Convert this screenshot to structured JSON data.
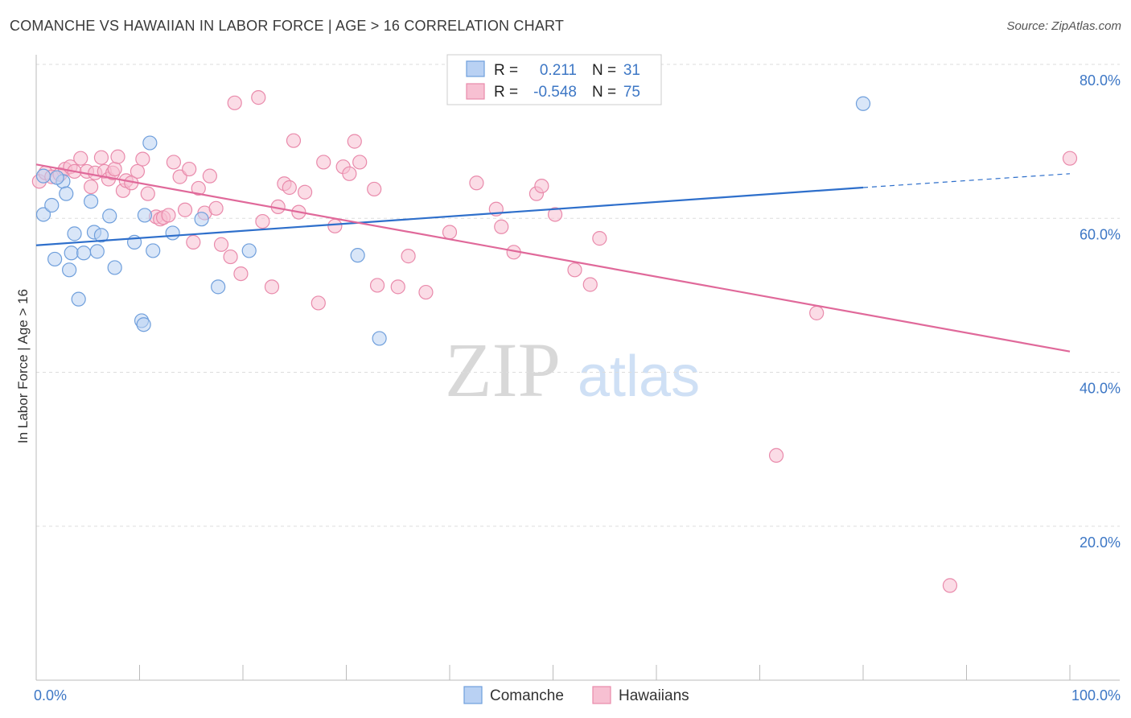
{
  "header": {
    "title": "COMANCHE VS HAWAIIAN IN LABOR FORCE | AGE > 16 CORRELATION CHART",
    "source": "Source: ZipAtlas.com"
  },
  "watermark": {
    "zip": "ZIP",
    "atlas": "atlas"
  },
  "colors": {
    "blue_fill": "#b9d1f3",
    "blue_stroke": "#6f9fdc",
    "blue_line": "#2e6fcb",
    "pink_fill": "#f7c0d2",
    "pink_stroke": "#e98aab",
    "pink_line": "#e0699a",
    "tick_text": "#3d77c5",
    "grid": "#dddddd"
  },
  "chart_data": {
    "type": "scatter",
    "xlabel": "",
    "ylabel": "In Labor Force | Age > 16",
    "xlim": [
      0,
      100
    ],
    "ylim": [
      0,
      80
    ],
    "y_ticks": [
      {
        "value": 20,
        "label": "20.0%"
      },
      {
        "value": 40,
        "label": "40.0%"
      },
      {
        "value": 60,
        "label": "60.0%"
      },
      {
        "value": 80,
        "label": "80.0%"
      }
    ],
    "x_tick_labels": [
      {
        "value": 0,
        "label": "0.0%"
      },
      {
        "value": 100,
        "label": "100.0%"
      }
    ],
    "grid": true,
    "legend_position": "top-center",
    "stats": [
      {
        "r_label": "R =",
        "r": "0.211",
        "n_label": "N =",
        "n": "31"
      },
      {
        "r_label": "R =",
        "r": "-0.548",
        "n_label": "N =",
        "n": "75"
      }
    ],
    "series": [
      {
        "name": "Comanche",
        "trend": {
          "x0": 0,
          "y0": 56.5,
          "x1": 80,
          "y1": 64.0,
          "dash_x1": 100,
          "dash_y1": 65.8
        },
        "points": [
          [
            0.7,
            65.5
          ],
          [
            0.7,
            60.5
          ],
          [
            1.5,
            61.7
          ],
          [
            1.8,
            54.7
          ],
          [
            2.6,
            64.8
          ],
          [
            2.9,
            63.2
          ],
          [
            3.2,
            53.3
          ],
          [
            3.4,
            55.5
          ],
          [
            3.7,
            58.0
          ],
          [
            4.1,
            49.5
          ],
          [
            4.6,
            55.5
          ],
          [
            5.3,
            62.2
          ],
          [
            5.6,
            58.2
          ],
          [
            5.9,
            55.7
          ],
          [
            6.3,
            57.8
          ],
          [
            7.1,
            60.3
          ],
          [
            7.6,
            53.6
          ],
          [
            9.5,
            56.9
          ],
          [
            10.2,
            46.7
          ],
          [
            10.4,
            46.2
          ],
          [
            10.5,
            60.4
          ],
          [
            11.0,
            69.8
          ],
          [
            11.3,
            55.8
          ],
          [
            13.2,
            58.1
          ],
          [
            16.0,
            59.9
          ],
          [
            17.6,
            51.1
          ],
          [
            20.6,
            55.8
          ],
          [
            31.1,
            55.2
          ],
          [
            33.2,
            44.4
          ],
          [
            80.0,
            74.9
          ],
          [
            2.0,
            65.3
          ]
        ]
      },
      {
        "name": "Hawaiians",
        "trend": {
          "x0": 0,
          "y0": 67.0,
          "x1": 100,
          "y1": 42.7
        },
        "points": [
          [
            0.3,
            64.8
          ],
          [
            0.9,
            65.9
          ],
          [
            1.5,
            65.4
          ],
          [
            2.3,
            65.7
          ],
          [
            2.8,
            66.4
          ],
          [
            3.3,
            66.7
          ],
          [
            3.7,
            66.1
          ],
          [
            4.3,
            67.8
          ],
          [
            4.9,
            66.1
          ],
          [
            5.3,
            64.1
          ],
          [
            5.7,
            65.9
          ],
          [
            6.3,
            67.9
          ],
          [
            6.6,
            66.1
          ],
          [
            7.0,
            65.1
          ],
          [
            7.4,
            65.9
          ],
          [
            7.6,
            66.4
          ],
          [
            7.9,
            68.0
          ],
          [
            8.4,
            63.6
          ],
          [
            8.7,
            64.9
          ],
          [
            9.2,
            64.6
          ],
          [
            9.8,
            66.1
          ],
          [
            10.3,
            67.7
          ],
          [
            10.8,
            63.2
          ],
          [
            11.6,
            60.2
          ],
          [
            12.0,
            59.9
          ],
          [
            12.3,
            60.1
          ],
          [
            12.8,
            60.4
          ],
          [
            13.3,
            67.3
          ],
          [
            13.9,
            65.4
          ],
          [
            14.4,
            61.1
          ],
          [
            14.8,
            66.4
          ],
          [
            15.2,
            56.9
          ],
          [
            15.7,
            63.9
          ],
          [
            16.3,
            60.7
          ],
          [
            16.8,
            65.5
          ],
          [
            17.4,
            61.3
          ],
          [
            17.9,
            56.6
          ],
          [
            18.8,
            55.0
          ],
          [
            19.2,
            75.0
          ],
          [
            19.8,
            52.8
          ],
          [
            21.5,
            75.7
          ],
          [
            21.9,
            59.6
          ],
          [
            22.8,
            51.1
          ],
          [
            23.4,
            61.5
          ],
          [
            24.0,
            64.5
          ],
          [
            24.5,
            64.0
          ],
          [
            24.9,
            70.1
          ],
          [
            25.4,
            60.8
          ],
          [
            26.0,
            63.4
          ],
          [
            27.3,
            49.0
          ],
          [
            27.8,
            67.3
          ],
          [
            28.9,
            59.0
          ],
          [
            29.7,
            66.7
          ],
          [
            30.3,
            65.8
          ],
          [
            30.8,
            70.0
          ],
          [
            31.3,
            67.3
          ],
          [
            32.7,
            63.8
          ],
          [
            33.0,
            51.3
          ],
          [
            35.0,
            51.1
          ],
          [
            36.0,
            55.1
          ],
          [
            37.7,
            50.4
          ],
          [
            40.0,
            58.2
          ],
          [
            42.6,
            64.6
          ],
          [
            44.5,
            61.2
          ],
          [
            45.0,
            58.9
          ],
          [
            46.2,
            55.6
          ],
          [
            48.4,
            63.2
          ],
          [
            48.9,
            64.2
          ],
          [
            50.2,
            60.5
          ],
          [
            52.1,
            53.3
          ],
          [
            53.6,
            51.4
          ],
          [
            54.5,
            57.4
          ],
          [
            71.6,
            29.2
          ],
          [
            75.5,
            47.7
          ],
          [
            88.4,
            12.3
          ],
          [
            100.0,
            67.8
          ]
        ]
      }
    ]
  }
}
